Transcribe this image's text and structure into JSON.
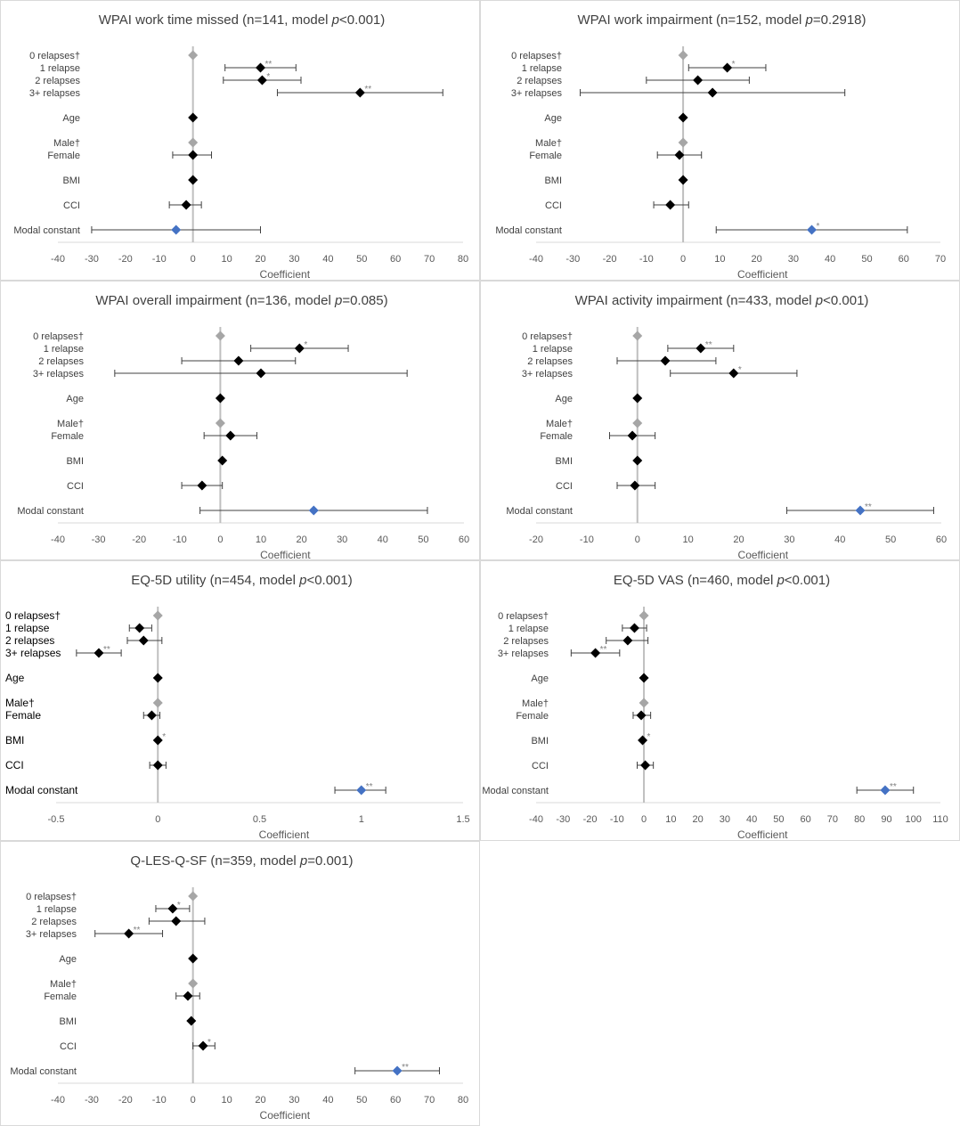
{
  "chart_data": [
    {
      "type": "scatter",
      "title_pre": "WPAI work time missed (n=141, model ",
      "title_p": "p",
      "title_post": "<0.001)",
      "xlabel": "Coefficient",
      "xlim": [
        -40,
        80
      ],
      "xticks": [
        -40,
        -30,
        -20,
        -10,
        0,
        10,
        20,
        30,
        40,
        50,
        60,
        70,
        80
      ],
      "rows": [
        {
          "label": "0 relapses†",
          "coef": 0,
          "ref": true
        },
        {
          "label": "1 relapse",
          "coef": 20,
          "lo": 9.5,
          "hi": 30.5,
          "sig": "**"
        },
        {
          "label": "2 relapses",
          "coef": 20.5,
          "lo": 9,
          "hi": 32,
          "sig": "*"
        },
        {
          "label": "3+ relapses",
          "coef": 49.5,
          "lo": 25,
          "hi": 74,
          "sig": "**"
        },
        {
          "label": "Age",
          "coef": 0
        },
        {
          "label": "Male†",
          "coef": 0,
          "ref": true
        },
        {
          "label": "Female",
          "coef": 0,
          "lo": -6,
          "hi": 5.5
        },
        {
          "label": "BMI",
          "coef": 0
        },
        {
          "label": "CCI",
          "coef": -2,
          "lo": -7,
          "hi": 2.5
        },
        {
          "label": "Modal constant",
          "coef": -5,
          "lo": -30,
          "hi": 20,
          "constant": true
        }
      ]
    },
    {
      "type": "scatter",
      "title_pre": "WPAI work impairment (n=152, model ",
      "title_p": "p",
      "title_post": "=0.2918)",
      "xlabel": "Coefficient",
      "xlim": [
        -40,
        70
      ],
      "xticks": [
        -40,
        -30,
        -20,
        -10,
        0,
        10,
        20,
        30,
        40,
        50,
        60,
        70
      ],
      "rows": [
        {
          "label": "0 relapses†",
          "coef": 0,
          "ref": true
        },
        {
          "label": "1 relapse",
          "coef": 12,
          "lo": 1.5,
          "hi": 22.5,
          "sig": "*"
        },
        {
          "label": "2 relapses",
          "coef": 4,
          "lo": -10,
          "hi": 18
        },
        {
          "label": "3+ relapses",
          "coef": 8,
          "lo": -28,
          "hi": 44
        },
        {
          "label": "Age",
          "coef": 0
        },
        {
          "label": "Male†",
          "coef": 0,
          "ref": true
        },
        {
          "label": "Female",
          "coef": -1,
          "lo": -7,
          "hi": 5
        },
        {
          "label": "BMI",
          "coef": 0
        },
        {
          "label": "CCI",
          "coef": -3.5,
          "lo": -8,
          "hi": 1.5
        },
        {
          "label": "Modal constant",
          "coef": 35,
          "lo": 9,
          "hi": 61,
          "sig": "*",
          "constant": true
        }
      ]
    },
    {
      "type": "scatter",
      "title_pre": "WPAI overall impairment (n=136, model ",
      "title_p": "p",
      "title_post": "=0.085)",
      "xlabel": "Coefficient",
      "xlim": [
        -40,
        60
      ],
      "xticks": [
        -40,
        -30,
        -20,
        -10,
        0,
        10,
        20,
        30,
        40,
        50,
        60
      ],
      "rows": [
        {
          "label": "0 relapses†",
          "coef": 0,
          "ref": true
        },
        {
          "label": "1 relapse",
          "coef": 19.5,
          "lo": 7.5,
          "hi": 31.5,
          "sig": "*"
        },
        {
          "label": "2 relapses",
          "coef": 4.5,
          "lo": -9.5,
          "hi": 18.5
        },
        {
          "label": "3+ relapses",
          "coef": 10,
          "lo": -26,
          "hi": 46
        },
        {
          "label": "Age",
          "coef": 0
        },
        {
          "label": "Male†",
          "coef": 0,
          "ref": true
        },
        {
          "label": "Female",
          "coef": 2.5,
          "lo": -4,
          "hi": 9
        },
        {
          "label": "BMI",
          "coef": 0.5
        },
        {
          "label": "CCI",
          "coef": -4.5,
          "lo": -9.5,
          "hi": 0.5
        },
        {
          "label": "Modal constant",
          "coef": 23,
          "lo": -5,
          "hi": 51,
          "constant": true
        }
      ]
    },
    {
      "type": "scatter",
      "title_pre": "WPAI activity impairment (n=433, model ",
      "title_p": "p",
      "title_post": "<0.001)",
      "xlabel": "Coefficient",
      "xlim": [
        -20,
        60
      ],
      "xticks": [
        -20,
        -10,
        0,
        10,
        20,
        30,
        40,
        50,
        60
      ],
      "rows": [
        {
          "label": "0 relapses†",
          "coef": 0,
          "ref": true
        },
        {
          "label": "1 relapse",
          "coef": 12.5,
          "lo": 6,
          "hi": 19,
          "sig": "**"
        },
        {
          "label": "2 relapses",
          "coef": 5.5,
          "lo": -4,
          "hi": 15.5
        },
        {
          "label": "3+ relapses",
          "coef": 19,
          "lo": 6.5,
          "hi": 31.5,
          "sig": "*"
        },
        {
          "label": "Age",
          "coef": 0
        },
        {
          "label": "Male†",
          "coef": 0,
          "ref": true
        },
        {
          "label": "Female",
          "coef": -1,
          "lo": -5.5,
          "hi": 3.5
        },
        {
          "label": "BMI",
          "coef": 0
        },
        {
          "label": "CCI",
          "coef": -0.5,
          "lo": -4,
          "hi": 3.5
        },
        {
          "label": "Modal constant",
          "coef": 44,
          "lo": 29.5,
          "hi": 58.5,
          "sig": "**",
          "constant": true
        }
      ]
    },
    {
      "type": "scatter",
      "title_pre": "EQ-5D utility (n=454, model ",
      "title_p": "p",
      "title_post": "<0.001)",
      "xlabel": "Coefficient",
      "xlim": [
        -0.5,
        1.5
      ],
      "xticks": [
        -0.5,
        0,
        0.5,
        1,
        1.5
      ],
      "rows": [
        {
          "label": "0 relapses†",
          "coef": 0,
          "ref": true
        },
        {
          "label": "1 relapse",
          "coef": -0.09,
          "lo": -0.14,
          "hi": -0.03
        },
        {
          "label": "2 relapses",
          "coef": -0.07,
          "lo": -0.15,
          "hi": 0.02
        },
        {
          "label": "3+ relapses",
          "coef": -0.29,
          "lo": -0.4,
          "hi": -0.18,
          "sig": "**"
        },
        {
          "label": "Age",
          "coef": 0
        },
        {
          "label": "Male†",
          "coef": 0,
          "ref": true
        },
        {
          "label": "Female",
          "coef": -0.03,
          "lo": -0.07,
          "hi": 0.01
        },
        {
          "label": "BMI",
          "coef": 0,
          "sig": "*"
        },
        {
          "label": "CCI",
          "coef": 0,
          "lo": -0.04,
          "hi": 0.04
        },
        {
          "label": "Modal constant",
          "coef": 1,
          "lo": 0.87,
          "hi": 1.12,
          "sig": "**",
          "constant": true
        }
      ]
    },
    {
      "type": "scatter",
      "title_pre": "EQ-5D VAS (n=460, model ",
      "title_p": "p",
      "title_post": "<0.001)",
      "xlabel": "Coefficient",
      "xlim": [
        -40,
        110
      ],
      "xticks": [
        -40,
        -30,
        -20,
        -10,
        0,
        10,
        20,
        30,
        40,
        50,
        60,
        70,
        80,
        90,
        100,
        110
      ],
      "rows": [
        {
          "label": "0 relapses†",
          "coef": 0,
          "ref": true
        },
        {
          "label": "1 relapse",
          "coef": -3.5,
          "lo": -8,
          "hi": 1
        },
        {
          "label": "2 relapses",
          "coef": -6,
          "lo": -14,
          "hi": 1.5
        },
        {
          "label": "3+ relapses",
          "coef": -18,
          "lo": -27,
          "hi": -9,
          "sig": "**"
        },
        {
          "label": "Age",
          "coef": 0
        },
        {
          "label": "Male†",
          "coef": 0,
          "ref": true
        },
        {
          "label": "Female",
          "coef": -1,
          "lo": -4,
          "hi": 2.5
        },
        {
          "label": "BMI",
          "coef": -0.5,
          "sig": "*"
        },
        {
          "label": "CCI",
          "coef": 0.5,
          "lo": -2.5,
          "hi": 3.5
        },
        {
          "label": "Modal constant",
          "coef": 89.5,
          "lo": 79,
          "hi": 100,
          "sig": "**",
          "constant": true
        }
      ]
    },
    {
      "type": "scatter",
      "title_pre": "Q-LES-Q-SF (n=359, model ",
      "title_p": "p",
      "title_post": "=0.001)",
      "xlabel": "Coefficient",
      "xlim": [
        -40,
        80
      ],
      "xticks": [
        -40,
        -30,
        -20,
        -10,
        0,
        10,
        20,
        30,
        40,
        50,
        60,
        70,
        80
      ],
      "rows": [
        {
          "label": "0 relapses†",
          "coef": 0,
          "ref": true
        },
        {
          "label": "1 relapse",
          "coef": -6,
          "lo": -11,
          "hi": -1,
          "sig": "*"
        },
        {
          "label": "2 relapses",
          "coef": -5,
          "lo": -13,
          "hi": 3.5
        },
        {
          "label": "3+ relapses",
          "coef": -19,
          "lo": -29,
          "hi": -9,
          "sig": "**"
        },
        {
          "label": "Age",
          "coef": 0
        },
        {
          "label": "Male†",
          "coef": 0,
          "ref": true
        },
        {
          "label": "Female",
          "coef": -1.5,
          "lo": -5,
          "hi": 2
        },
        {
          "label": "BMI",
          "coef": -0.5
        },
        {
          "label": "CCI",
          "coef": 3,
          "lo": 0,
          "hi": 6.5,
          "sig": "*"
        },
        {
          "label": "Modal constant",
          "coef": 60.5,
          "lo": 48,
          "hi": 73,
          "sig": "**",
          "constant": true
        }
      ]
    }
  ]
}
